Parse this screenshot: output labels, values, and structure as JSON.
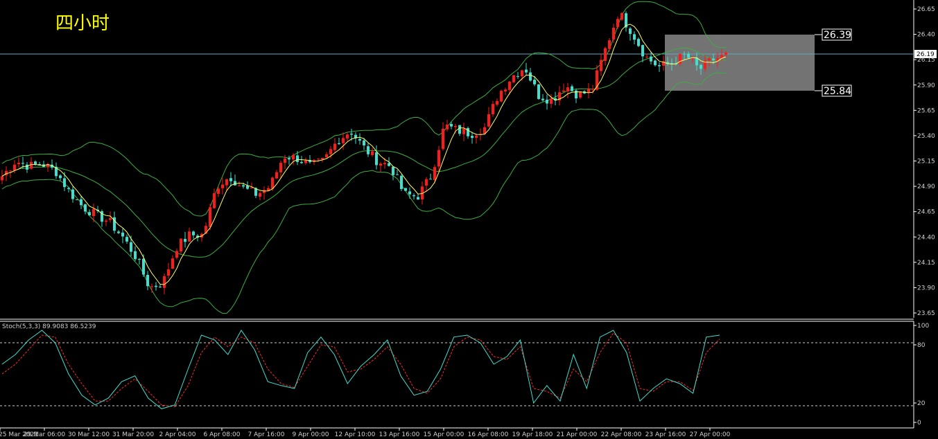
{
  "chart_title": "四小时",
  "colors": {
    "background": "#000000",
    "bull_candle": "#ff1a1a",
    "bear_candle": "#40e0d0",
    "bands": "#3cb043",
    "moving_average": "#ffff66",
    "current_line": "#5fa8c8",
    "stoch_main": "#40e0d0",
    "stoch_signal": "#ff2a2a",
    "zone_box": "#7f7f7f"
  },
  "price_axis": {
    "ticks": [
      "26.65",
      "26.40",
      "26.15",
      "25.90",
      "25.65",
      "25.40",
      "25.15",
      "24.90",
      "24.65",
      "24.40",
      "24.15",
      "23.90",
      "23.65"
    ],
    "current_price": "26.19"
  },
  "zone": {
    "upper_label": "26.39",
    "lower_label": "25.84"
  },
  "stoch": {
    "label": "Stoch(5,3,3) 89.9083 86.5239",
    "ticks": [
      "100",
      "80",
      "20",
      "0"
    ]
  },
  "time_axis": {
    "labels": [
      "25 Mar 2021",
      "29 Mar 06:00",
      "30 Mar 12:00",
      "31 Mar 20:00",
      "2 Apr 04:00",
      "6 Apr 08:00",
      "7 Apr 16:00",
      "9 Apr 00:00",
      "12 Apr 10:00",
      "13 Apr 16:00",
      "15 Apr 00:00",
      "16 Apr 08:00",
      "19 Apr 18:00",
      "21 Apr 00:00",
      "22 Apr 08:00",
      "23 Apr 16:00",
      "27 Apr 00:00"
    ]
  },
  "chart_data": {
    "type": "candlestick",
    "indicators": [
      "Bollinger Bands",
      "Moving Average",
      "Stochastic(5,3,3)"
    ],
    "ylim": [
      23.6,
      26.7
    ],
    "close_path": [
      25.0,
      25.15,
      25.1,
      25.12,
      25.05,
      24.85,
      24.7,
      24.62,
      24.55,
      24.4,
      24.2,
      23.9,
      23.95,
      24.3,
      24.42,
      24.42,
      24.9,
      25.0,
      24.88,
      24.82,
      24.9,
      25.2,
      25.18,
      25.1,
      25.15,
      25.35,
      25.45,
      25.28,
      25.15,
      25.1,
      24.82,
      24.8,
      25.0,
      25.5,
      25.45,
      25.42,
      25.48,
      25.8,
      25.98,
      26.08,
      25.8,
      25.75,
      25.9,
      25.8,
      25.85,
      26.25,
      26.62,
      26.42,
      26.18,
      26.08,
      26.12,
      26.2,
      26.05,
      26.15,
      26.19
    ],
    "stoch_main": [
      60,
      70,
      85,
      95,
      82,
      50,
      28,
      18,
      25,
      42,
      48,
      25,
      14,
      18,
      55,
      90,
      85,
      70,
      95,
      75,
      42,
      38,
      35,
      72,
      88,
      70,
      40,
      58,
      70,
      85,
      48,
      28,
      32,
      55,
      88,
      90,
      82,
      60,
      68,
      85,
      20,
      38,
      22,
      70,
      35,
      88,
      95,
      72,
      22,
      35,
      45,
      40,
      30,
      88,
      90
    ],
    "stoch_signal": [
      50,
      60,
      75,
      90,
      88,
      60,
      40,
      22,
      22,
      35,
      45,
      32,
      18,
      16,
      38,
      72,
      88,
      78,
      88,
      82,
      55,
      40,
      36,
      58,
      80,
      78,
      52,
      55,
      65,
      78,
      60,
      35,
      30,
      45,
      78,
      88,
      85,
      68,
      65,
      78,
      35,
      32,
      25,
      55,
      42,
      72,
      92,
      82,
      35,
      32,
      42,
      42,
      33,
      72,
      86
    ]
  }
}
